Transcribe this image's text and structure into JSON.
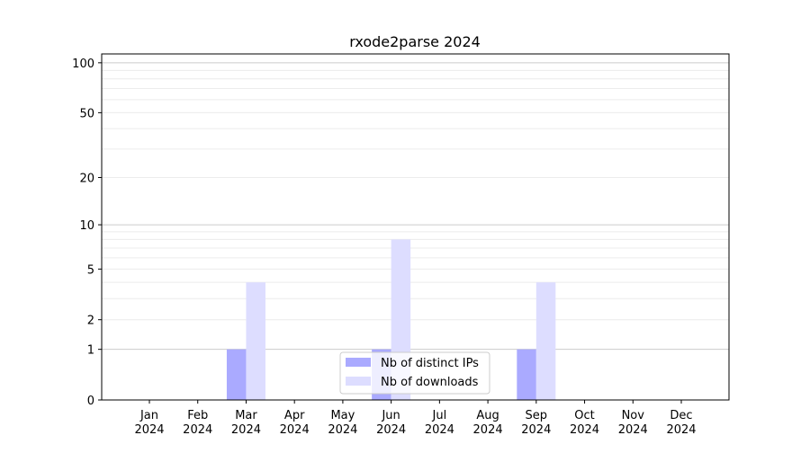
{
  "chart_data": {
    "type": "bar",
    "title": "rxode2parse 2024",
    "xlabel": "",
    "ylabel": "",
    "y_scale": "log10(1+y)",
    "ylim": [
      0,
      113
    ],
    "y_ticks": [
      0,
      1,
      2,
      5,
      10,
      20,
      50,
      100
    ],
    "grid": true,
    "legend_position": "bottom-center",
    "categories": [
      "Jan\n2024",
      "Feb\n2024",
      "Mar\n2024",
      "Apr\n2024",
      "May\n2024",
      "Jun\n2024",
      "Jul\n2024",
      "Aug\n2024",
      "Sep\n2024",
      "Oct\n2024",
      "Nov\n2024",
      "Dec\n2024"
    ],
    "series": [
      {
        "name": "Nb of distinct IPs",
        "color": "#aaaaff",
        "values": [
          0,
          0,
          1,
          0,
          0,
          1,
          0,
          0,
          1,
          0,
          0,
          0
        ]
      },
      {
        "name": "Nb of downloads",
        "color": "#ddddff",
        "values": [
          0,
          0,
          4,
          0,
          0,
          8,
          0,
          0,
          4,
          0,
          0,
          0
        ]
      }
    ]
  }
}
